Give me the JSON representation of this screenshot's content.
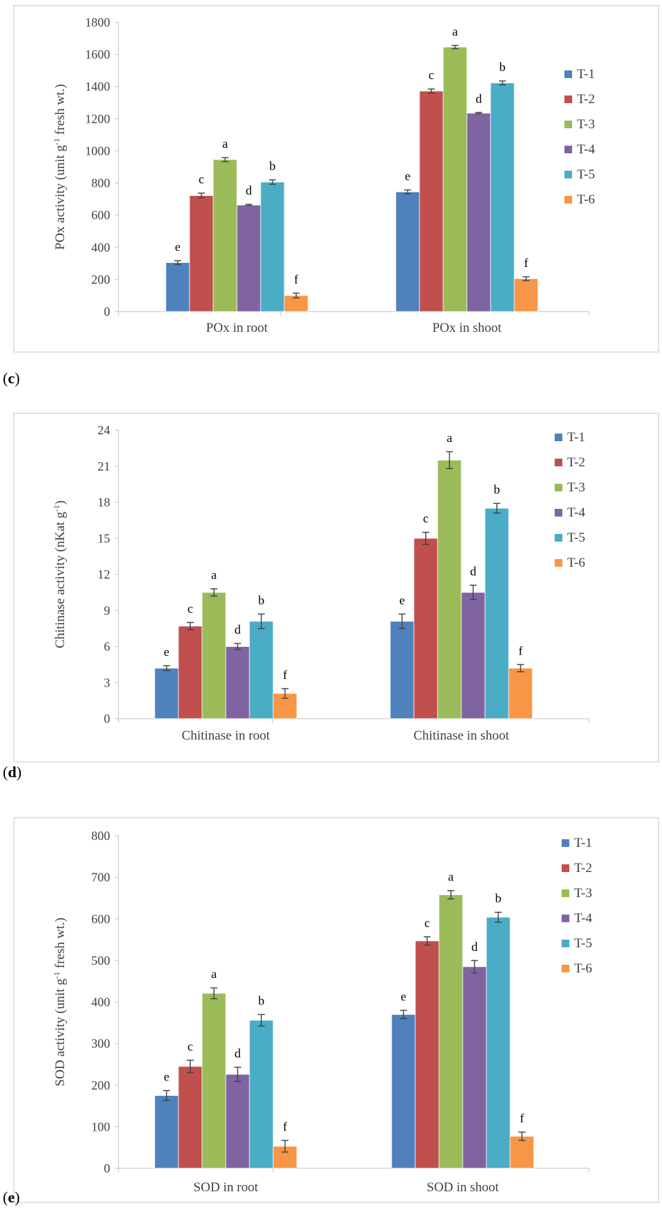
{
  "panels": [
    {
      "letter": "c"
    },
    {
      "letter": "d"
    },
    {
      "letter": "e"
    }
  ],
  "chart_data": [
    {
      "type": "bar",
      "panel": "c",
      "ylabel": "POx activity (unit g-1 fresh wt.)",
      "ylim": [
        0,
        1800
      ],
      "yticks": [
        0,
        200,
        400,
        600,
        800,
        1000,
        1200,
        1400,
        1600,
        1800
      ],
      "categories": [
        "POx in root",
        "POx in shoot"
      ],
      "legend_position": "right",
      "grid": false,
      "series": [
        {
          "name": "T-1",
          "color": "#4F81BD",
          "values": [
            305,
            745
          ],
          "errors": [
            12,
            12
          ],
          "letters": [
            "e",
            "e"
          ]
        },
        {
          "name": "T-2",
          "color": "#C0504D",
          "values": [
            722,
            1372
          ],
          "errors": [
            15,
            13
          ],
          "letters": [
            "c",
            "c"
          ]
        },
        {
          "name": "T-3",
          "color": "#9BBB59",
          "values": [
            946,
            1646
          ],
          "errors": [
            12,
            10
          ],
          "letters": [
            "a",
            "a"
          ]
        },
        {
          "name": "T-4",
          "color": "#8064A2",
          "values": [
            663,
            1235
          ],
          "errors": [
            4,
            4
          ],
          "letters": [
            "d",
            "d"
          ]
        },
        {
          "name": "T-5",
          "color": "#4BACC6",
          "values": [
            806,
            1423
          ],
          "errors": [
            14,
            12
          ],
          "letters": [
            "b",
            "b"
          ]
        },
        {
          "name": "T-6",
          "color": "#F79646",
          "values": [
            100,
            205
          ],
          "errors": [
            15,
            12
          ],
          "letters": [
            "f",
            "f"
          ]
        }
      ]
    },
    {
      "type": "bar",
      "panel": "d",
      "ylabel": "Chitinase activity (nKat g-1)",
      "ylim": [
        0,
        24
      ],
      "yticks": [
        0,
        3,
        6,
        9,
        12,
        15,
        18,
        21,
        24
      ],
      "categories": [
        "Chitinase in root",
        "Chitinase in shoot"
      ],
      "legend_position": "right",
      "grid": false,
      "series": [
        {
          "name": "T-1",
          "color": "#4F81BD",
          "values": [
            4.2,
            8.1
          ],
          "errors": [
            0.2,
            0.6
          ],
          "letters": [
            "e",
            "e"
          ]
        },
        {
          "name": "T-2",
          "color": "#C0504D",
          "values": [
            7.7,
            15.0
          ],
          "errors": [
            0.3,
            0.5
          ],
          "letters": [
            "c",
            "c"
          ]
        },
        {
          "name": "T-3",
          "color": "#9BBB59",
          "values": [
            10.5,
            21.5
          ],
          "errors": [
            0.3,
            0.7
          ],
          "letters": [
            "a",
            "a"
          ]
        },
        {
          "name": "T-4",
          "color": "#8064A2",
          "values": [
            6.0,
            10.5
          ],
          "errors": [
            0.25,
            0.6
          ],
          "letters": [
            "d",
            "d"
          ]
        },
        {
          "name": "T-5",
          "color": "#4BACC6",
          "values": [
            8.1,
            17.5
          ],
          "errors": [
            0.6,
            0.4
          ],
          "letters": [
            "b",
            "b"
          ]
        },
        {
          "name": "T-6",
          "color": "#F79646",
          "values": [
            2.1,
            4.2
          ],
          "errors": [
            0.4,
            0.3
          ],
          "letters": [
            "f",
            "f"
          ]
        }
      ]
    },
    {
      "type": "bar",
      "panel": "e",
      "ylabel": "SOD activity (unit g-1 fresh wt.)",
      "ylim": [
        0,
        800
      ],
      "yticks": [
        0,
        100,
        200,
        300,
        400,
        500,
        600,
        700,
        800
      ],
      "categories": [
        "SOD in root",
        "SOD in shoot"
      ],
      "legend_position": "right",
      "grid": false,
      "series": [
        {
          "name": "T-1",
          "color": "#4F81BD",
          "values": [
            175,
            370
          ],
          "errors": [
            12,
            10
          ],
          "letters": [
            "e",
            "e"
          ]
        },
        {
          "name": "T-2",
          "color": "#C0504D",
          "values": [
            245,
            547
          ],
          "errors": [
            15,
            10
          ],
          "letters": [
            "c",
            "c"
          ]
        },
        {
          "name": "T-3",
          "color": "#9BBB59",
          "values": [
            421,
            658
          ],
          "errors": [
            13,
            10
          ],
          "letters": [
            "a",
            "a"
          ]
        },
        {
          "name": "T-4",
          "color": "#8064A2",
          "values": [
            226,
            485
          ],
          "errors": [
            17,
            15
          ],
          "letters": [
            "d",
            "d"
          ]
        },
        {
          "name": "T-5",
          "color": "#4BACC6",
          "values": [
            356,
            604
          ],
          "errors": [
            14,
            12
          ],
          "letters": [
            "b",
            "b"
          ]
        },
        {
          "name": "T-6",
          "color": "#F79646",
          "values": [
            53,
            77
          ],
          "errors": [
            14,
            10
          ],
          "letters": [
            "f",
            "f"
          ]
        }
      ]
    }
  ]
}
